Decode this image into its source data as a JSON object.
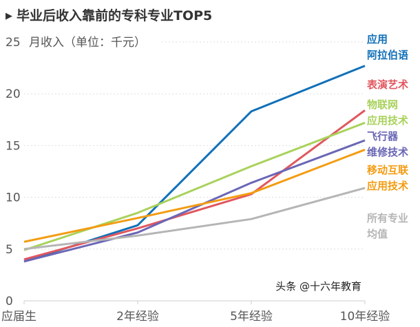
{
  "title": "毕业后收入靠前的专科专业TOP5",
  "watermark": "头条 @十六年教育",
  "chart_data": {
    "type": "line",
    "title": "毕业后收入靠前的专科专业TOP5",
    "ylabel": "月收入（单位：千元）",
    "categories": [
      "应届生",
      "2年经验",
      "5年经验",
      "10年经验"
    ],
    "ylim": [
      0,
      25
    ],
    "yticks": [
      0,
      5,
      10,
      15,
      20,
      25
    ],
    "grid": true,
    "legend": "right, inline labels",
    "series": [
      {
        "name": "应用\n阿拉伯语",
        "color": "#1170b8",
        "values": [
          3.8,
          7.3,
          18.3,
          22.7
        ]
      },
      {
        "name": "表演艺术",
        "color": "#e0575e",
        "values": [
          4.0,
          7.0,
          10.3,
          18.4
        ]
      },
      {
        "name": "物联网\n应用技术",
        "color": "#a9d25c",
        "values": [
          4.9,
          8.5,
          13.0,
          17.2
        ]
      },
      {
        "name": "飞行器\n维修技术",
        "color": "#6a66b5",
        "values": [
          3.8,
          6.6,
          11.4,
          15.5
        ]
      },
      {
        "name": "移动互联\n应用技术",
        "color": "#f39c12",
        "values": [
          5.7,
          8.0,
          10.4,
          14.6
        ]
      },
      {
        "name": "所有专业\n均值",
        "color": "#b5b5b5",
        "values": [
          5.0,
          6.3,
          7.9,
          10.9
        ]
      }
    ]
  }
}
